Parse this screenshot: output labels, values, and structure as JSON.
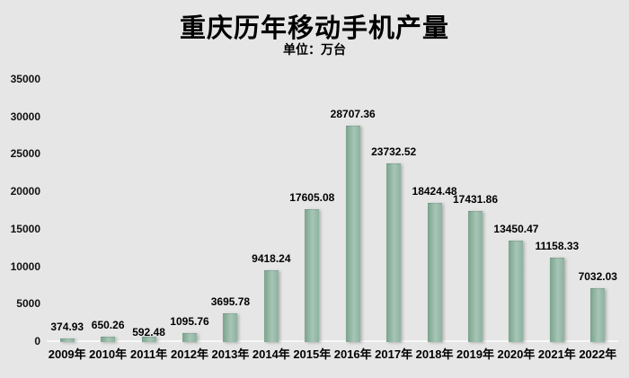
{
  "header": {
    "title": "重庆历年移动手机产量",
    "subtitle": "单位：万台"
  },
  "colors": {
    "background": "#e6e6e6",
    "text": "#000000",
    "axis_line": "#f7f7f7",
    "bar_gradient_left": "#7ba38e",
    "bar_gradient_mid": "#a6c6b5",
    "bar_gradient_right": "#8db2a0"
  },
  "chart_data": {
    "type": "bar",
    "title": "重庆历年移动手机产量",
    "subtitle": "单位：万台",
    "categories": [
      "2009年",
      "2010年",
      "2011年",
      "2012年",
      "2013年",
      "2014年",
      "2015年",
      "2016年",
      "2017年",
      "2018年",
      "2019年",
      "2020年",
      "2021年",
      "2022年"
    ],
    "values": [
      374.93,
      650.26,
      592.48,
      1095.76,
      3695.78,
      9418.24,
      17605.08,
      28707.36,
      23732.52,
      18424.48,
      17431.86,
      13450.47,
      11158.33,
      7032.03
    ],
    "data_labels": [
      "374.93",
      "650.26",
      "592.48",
      "1095.76",
      "3695.78",
      "9418.24",
      "17605.08",
      "28707.36",
      "23732.52",
      "18424.48",
      "17431.86",
      "13450.47",
      "11158.33",
      "7032.03"
    ],
    "xlabel": "",
    "ylabel": "",
    "ylim": [
      0,
      35000
    ],
    "ytick_step": 5000,
    "yticks": [
      "0",
      "5000",
      "10000",
      "15000",
      "20000",
      "25000",
      "30000",
      "35000"
    ],
    "grid": false,
    "legend": "none",
    "label_position": "outside-end",
    "label_dy": [
      0,
      0,
      8,
      0,
      0,
      0,
      0,
      0,
      0,
      0,
      0,
      0,
      0,
      0
    ]
  }
}
